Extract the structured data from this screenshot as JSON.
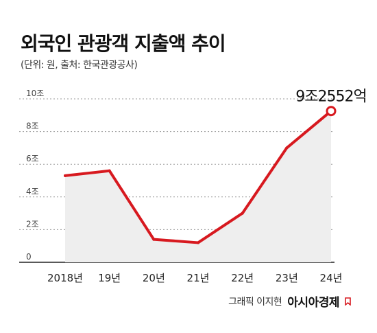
{
  "title": "외국인 관광객 지출액 추이",
  "subtitle": "(단위: 원, 출처: 한국관광공사)",
  "credit": {
    "text": "그래픽 이지현",
    "brand": "아시아경제",
    "brand_color": "#d7191f"
  },
  "colors": {
    "line": "#d7191f",
    "area": "#eeeeee",
    "grid": "#9a9a9a",
    "axis": "#222222"
  },
  "chart_data": {
    "type": "area",
    "title": "외국인 관광객 지출액 추이",
    "categories": [
      "2018년",
      "19년",
      "20년",
      "21년",
      "22년",
      "23년",
      "24년"
    ],
    "series": [
      {
        "values": [
          5.3,
          5.6,
          1.4,
          1.2,
          3.0,
          7.0,
          9.2552
        ]
      }
    ],
    "y_tick_labels": [
      "0",
      "2조",
      "4조",
      "6조",
      "8조",
      "10조"
    ],
    "y_tick_values": [
      0,
      2,
      4,
      6,
      8,
      10
    ],
    "ylim": [
      0,
      10
    ],
    "grid": "horizontal-dashed",
    "annotation": {
      "index": 6,
      "text": "9조2552억"
    }
  }
}
